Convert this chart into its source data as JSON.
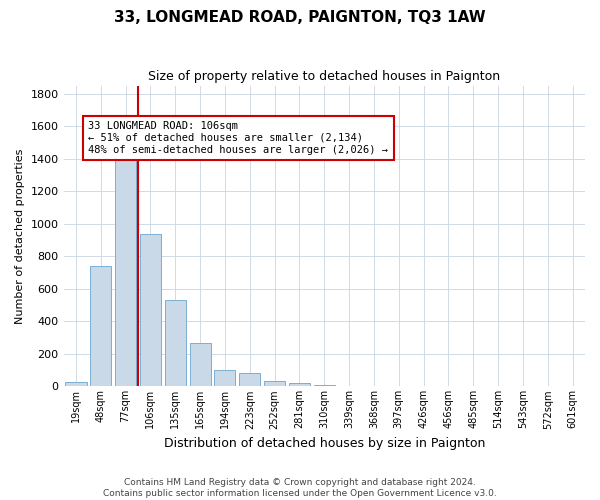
{
  "title": "33, LONGMEAD ROAD, PAIGNTON, TQ3 1AW",
  "subtitle": "Size of property relative to detached houses in Paignton",
  "xlabel": "Distribution of detached houses by size in Paignton",
  "ylabel": "Number of detached properties",
  "categories": [
    "19sqm",
    "48sqm",
    "77sqm",
    "106sqm",
    "135sqm",
    "165sqm",
    "194sqm",
    "223sqm",
    "252sqm",
    "281sqm",
    "310sqm",
    "339sqm",
    "368sqm",
    "397sqm",
    "426sqm",
    "456sqm",
    "485sqm",
    "514sqm",
    "543sqm",
    "572sqm",
    "601sqm"
  ],
  "values": [
    30,
    740,
    1450,
    940,
    530,
    265,
    100,
    80,
    35,
    20,
    10,
    5,
    2,
    1,
    0,
    0,
    0,
    0,
    0,
    0,
    0
  ],
  "bar_color": "#c9d9e8",
  "bar_edge_color": "#7bafd4",
  "highlight_index": 3,
  "highlight_line_color": "#cc0000",
  "annotation_text": "33 LONGMEAD ROAD: 106sqm\n← 51% of detached houses are smaller (2,134)\n48% of semi-detached houses are larger (2,026) →",
  "annotation_box_color": "#ffffff",
  "annotation_box_edge": "#cc0000",
  "ylim": [
    0,
    1850
  ],
  "yticks": [
    0,
    200,
    400,
    600,
    800,
    1000,
    1200,
    1400,
    1600,
    1800
  ],
  "footer_line1": "Contains HM Land Registry data © Crown copyright and database right 2024.",
  "footer_line2": "Contains public sector information licensed under the Open Government Licence v3.0.",
  "background_color": "#ffffff",
  "grid_color": "#c8d4e0"
}
